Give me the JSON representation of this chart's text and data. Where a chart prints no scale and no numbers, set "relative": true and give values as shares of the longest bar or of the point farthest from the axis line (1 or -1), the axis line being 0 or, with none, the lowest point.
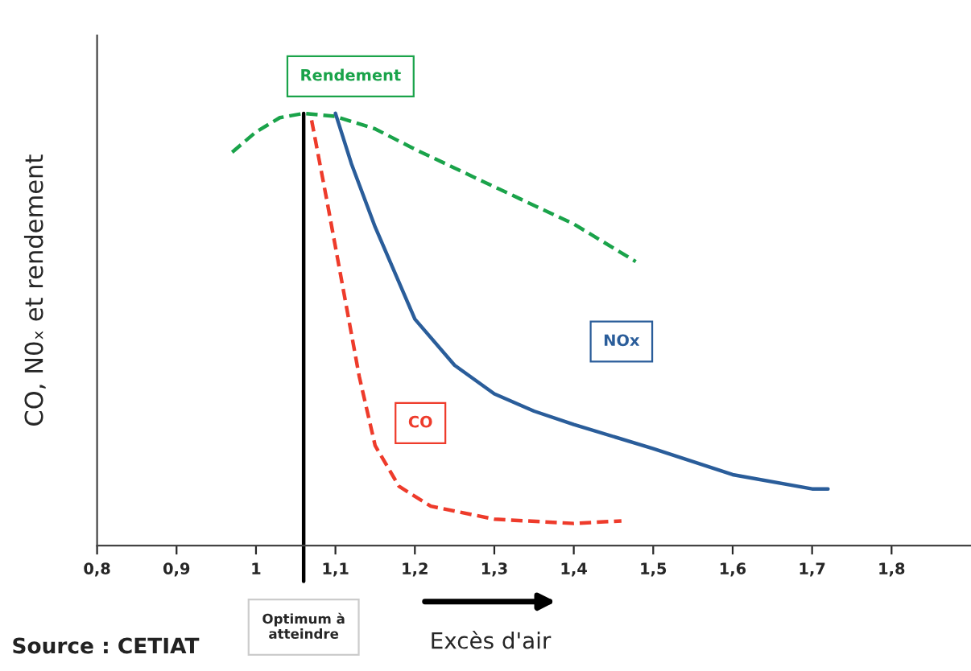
{
  "chart_data": {
    "type": "line",
    "relative": true,
    "ylabel": "CO, N0ₓ et rendement",
    "xlim": [
      0.8,
      1.9
    ],
    "xticks": [
      {
        "value": 0.8,
        "label": "0,8"
      },
      {
        "value": 0.9,
        "label": "0,9"
      },
      {
        "value": 1,
        "label": "1"
      },
      {
        "value": 1.1,
        "label": "1,1"
      },
      {
        "value": 1.2,
        "label": "1,2"
      },
      {
        "value": 1.3,
        "label": "1,3"
      },
      {
        "value": 1.4,
        "label": "1,4"
      },
      {
        "value": 1.5,
        "label": "1,5"
      },
      {
        "value": 1.6,
        "label": "1,6"
      },
      {
        "value": 1.7,
        "label": "1,7"
      },
      {
        "value": 1.8,
        "label": "1,8"
      }
    ],
    "series": [
      {
        "name": "Rendement",
        "color": "#1aa34a",
        "line_style": "dashed",
        "x": [
          0.97,
          1.0,
          1.03,
          1.06,
          1.1,
          1.15,
          1.2,
          1.3,
          1.4,
          1.478
        ],
        "values": [
          0.91,
          0.957,
          0.99,
          1.0,
          0.993,
          0.964,
          0.917,
          0.83,
          0.744,
          0.657
        ]
      },
      {
        "name": "NOx",
        "color": "#2a5d9a",
        "line_style": "solid",
        "x": [
          1.1,
          1.12,
          1.15,
          1.2,
          1.25,
          1.3,
          1.35,
          1.4,
          1.5,
          1.6,
          1.7,
          1.72
        ],
        "values": [
          1.0,
          0.884,
          0.737,
          0.524,
          0.417,
          0.351,
          0.311,
          0.28,
          0.224,
          0.164,
          0.131,
          0.131
        ]
      },
      {
        "name": "CO",
        "color": "#ee3b2b",
        "line_style": "dashed",
        "x": [
          1.07,
          1.09,
          1.11,
          1.13,
          1.15,
          1.18,
          1.22,
          1.3,
          1.4,
          1.46
        ],
        "values": [
          0.984,
          0.791,
          0.591,
          0.391,
          0.231,
          0.137,
          0.091,
          0.061,
          0.051,
          0.057
        ]
      }
    ],
    "ref_lines": [
      {
        "axis": "x",
        "value": 1.06,
        "label": "Optimum à\natteindre",
        "color": "#000000"
      }
    ],
    "annotations": [
      "Excès d'air",
      "Source : CETIAT"
    ],
    "grid": false,
    "legend": false,
    "marker": "none"
  }
}
